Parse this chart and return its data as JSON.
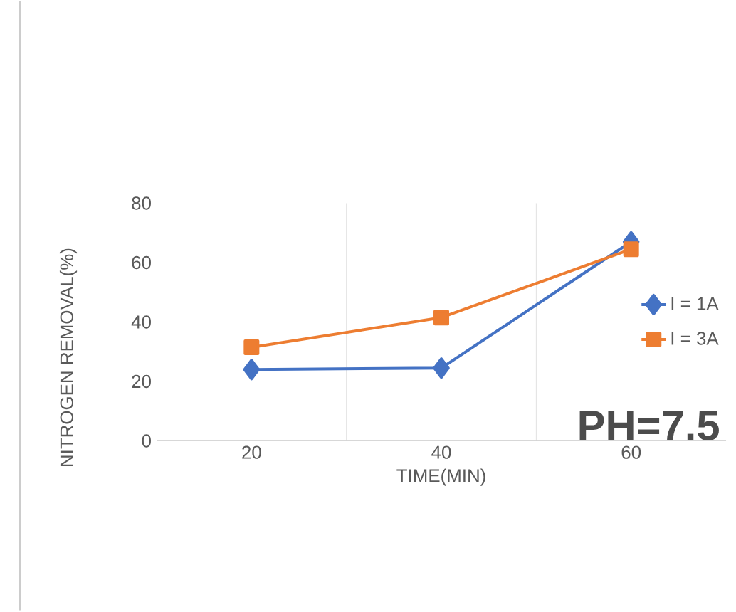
{
  "chart_data": {
    "type": "line",
    "xlabel": "TIME(MIN)",
    "ylabel": "NITROGEN REMOVAL(%)",
    "categories": [
      "20",
      "40",
      "60"
    ],
    "series": [
      {
        "name": "I = 1A",
        "color": "#4472c4",
        "marker": "diamond",
        "values": [
          24,
          24.5,
          67
        ]
      },
      {
        "name": "I = 3A",
        "color": "#ed7d31",
        "marker": "square",
        "values": [
          31.5,
          41.5,
          64.5
        ]
      }
    ],
    "ylim": [
      0,
      80
    ],
    "yticks": [
      0,
      20,
      40,
      60,
      80
    ],
    "grid": "x",
    "legend": "right",
    "annotations": [
      "PH=7.5"
    ]
  }
}
